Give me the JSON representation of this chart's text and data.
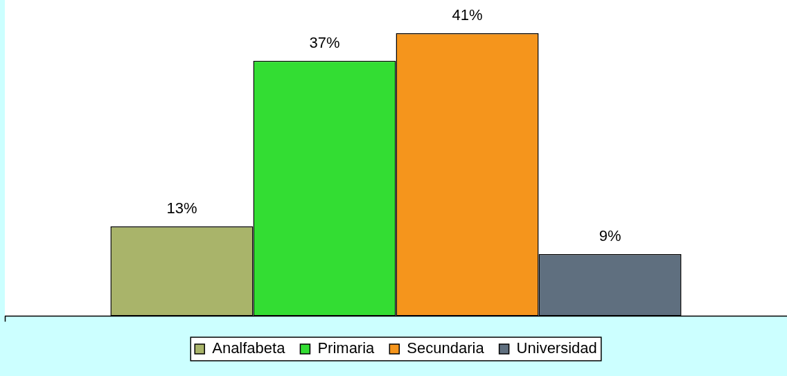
{
  "chart_data": {
    "type": "bar",
    "categories": [
      null
    ],
    "series": [
      {
        "name": "Analfabeta",
        "color": "#a9b46a",
        "values": [
          13
        ],
        "value_labels": [
          "13%"
        ]
      },
      {
        "name": "Primaria",
        "color": "#33dd33",
        "values": [
          37
        ],
        "value_labels": [
          "37%"
        ]
      },
      {
        "name": "Secundaria",
        "color": "#f5951c",
        "values": [
          41
        ],
        "value_labels": [
          "41%"
        ]
      },
      {
        "name": "Universidad",
        "color": "#5f6f7f",
        "values": [
          9
        ],
        "value_labels": [
          "9%"
        ]
      }
    ],
    "legend": "bottom"
  }
}
